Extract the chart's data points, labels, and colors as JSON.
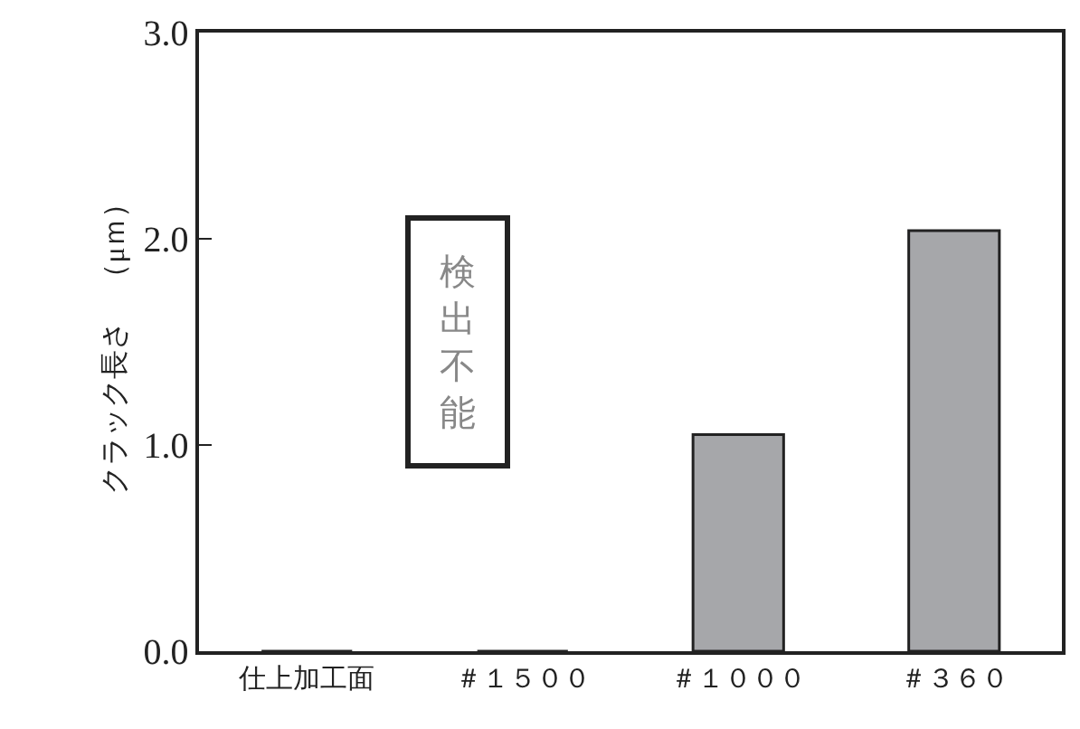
{
  "chart_data": {
    "type": "bar",
    "ylabel": "クラック長さ　（μｍ）",
    "categories": [
      "仕上加工面",
      "＃１５００",
      "＃１０００",
      "＃３６０"
    ],
    "values": [
      0,
      0,
      1.05,
      2.04
    ],
    "colors": [
      "#222222",
      "#222222",
      "#a6a7aa",
      "#a6a7aa"
    ],
    "ylim": [
      0,
      3.0
    ],
    "yticks": [
      {
        "value": 0,
        "label": "0.0"
      },
      {
        "value": 1,
        "label": "1.0"
      },
      {
        "value": 2,
        "label": "2.0"
      },
      {
        "value": 3,
        "label": "3.0"
      }
    ],
    "annotations": [
      "検出不能"
    ],
    "legend": false
  }
}
